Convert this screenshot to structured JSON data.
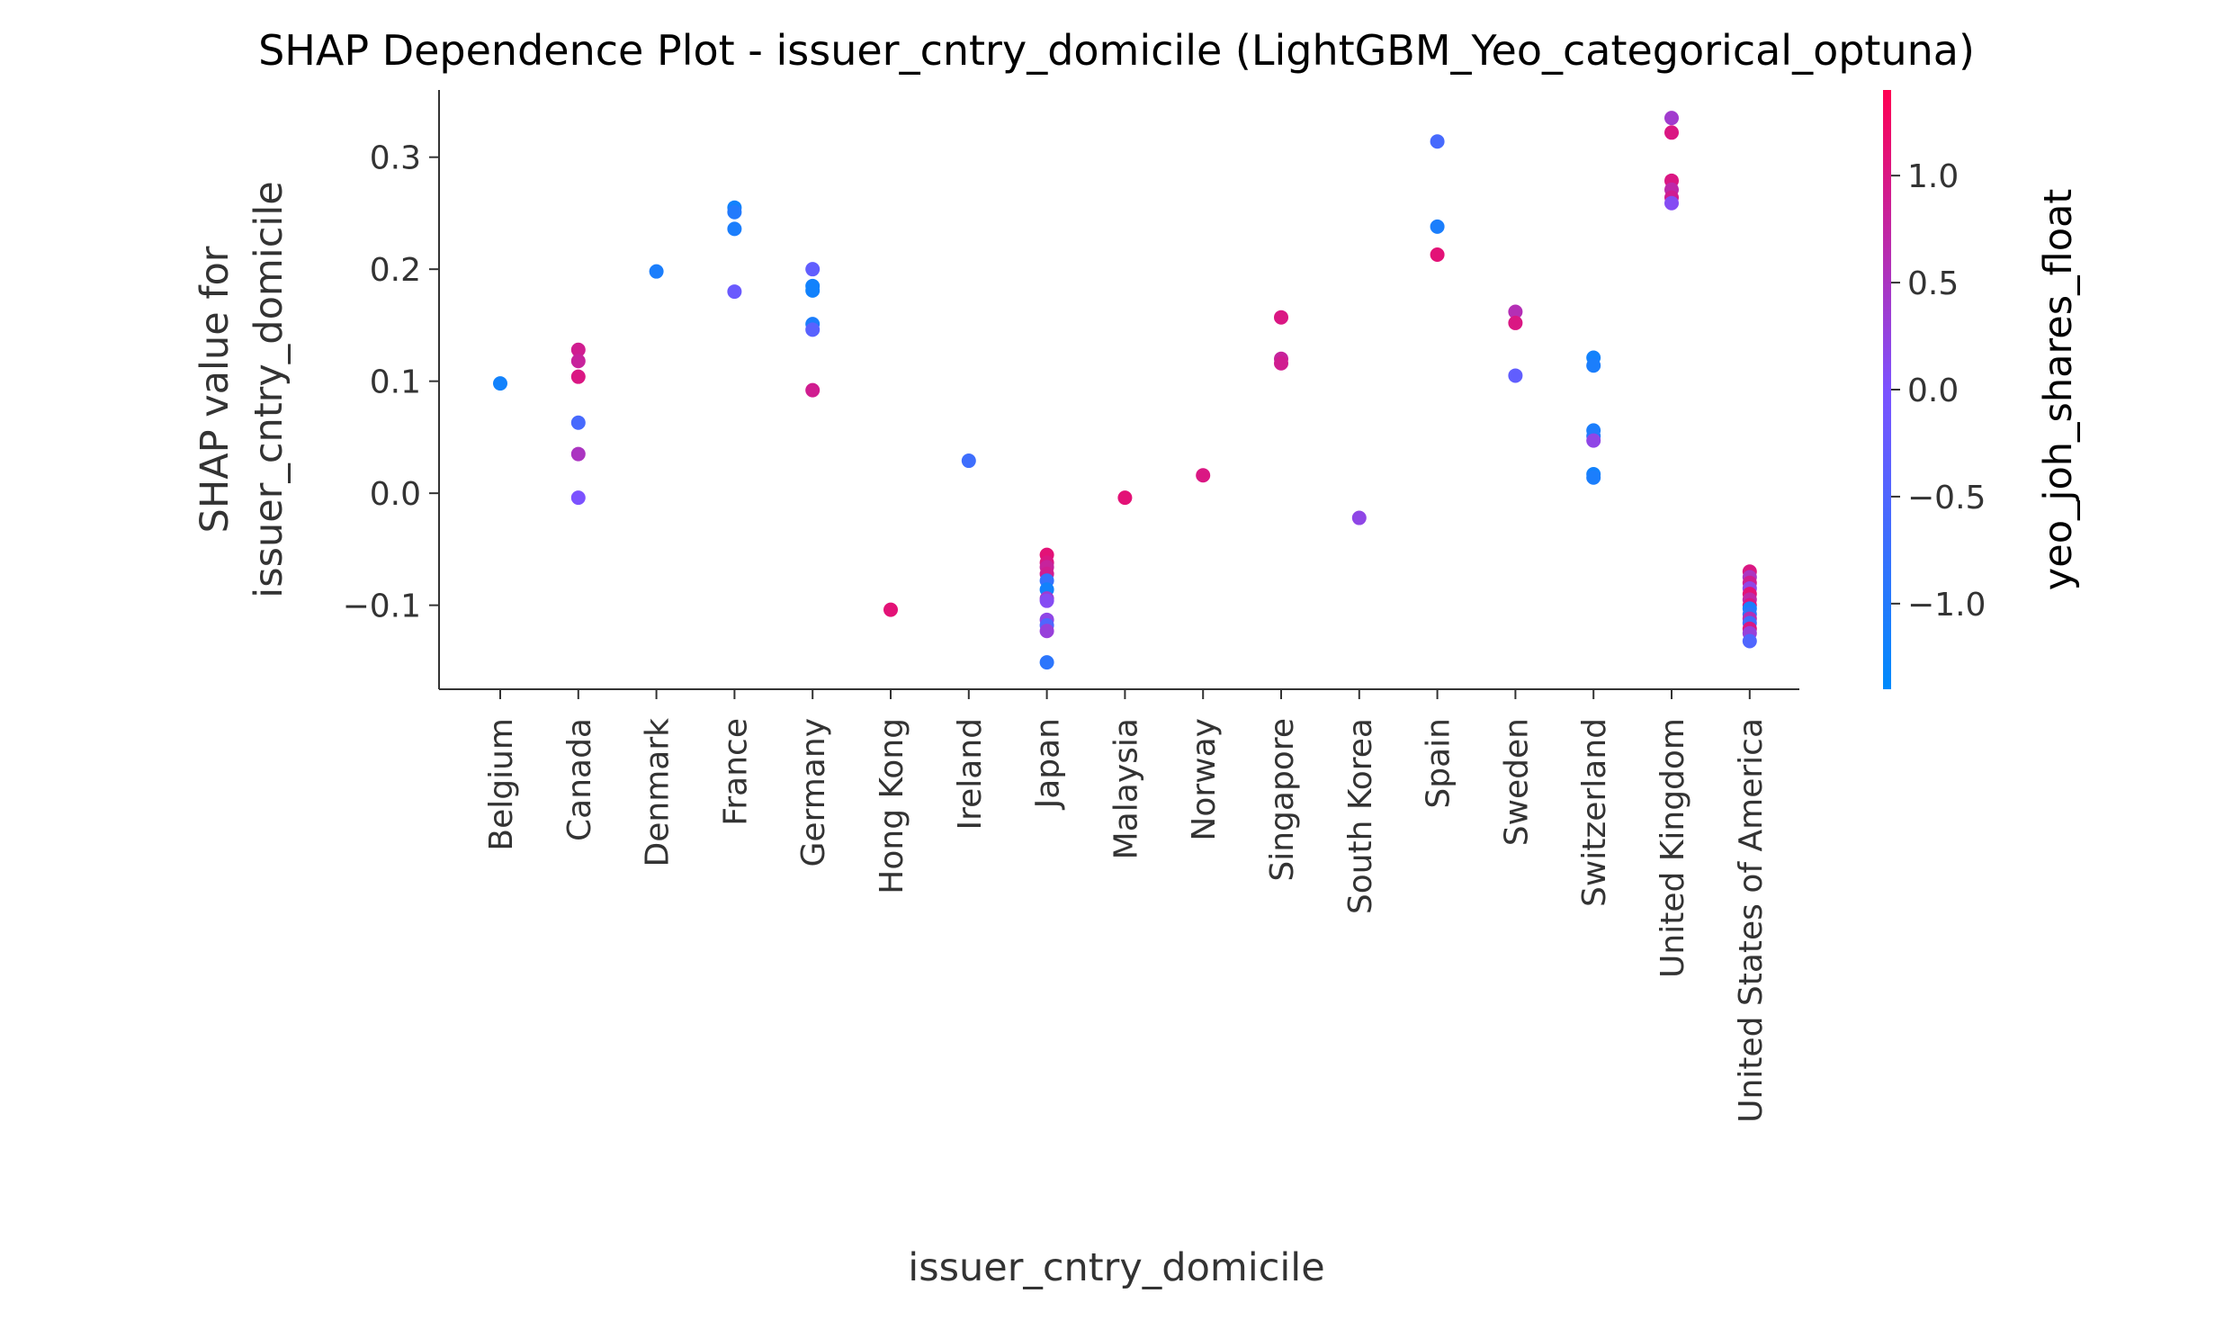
{
  "chart_data": {
    "type": "scatter",
    "title": "SHAP Dependence Plot - issuer_cntry_domicile (LightGBM_Yeo_categorical_optuna)",
    "xlabel": "issuer_cntry_domicile",
    "ylabel_lines": [
      "SHAP value for",
      "issuer_cntry_domicile"
    ],
    "categories": [
      "Belgium",
      "Canada",
      "Denmark",
      "France",
      "Germany",
      "Hong Kong",
      "Ireland",
      "Japan",
      "Malaysia",
      "Norway",
      "Singapore",
      "South Korea",
      "Spain",
      "Sweden",
      "Switzerland",
      "United Kingdom",
      "United States of America"
    ],
    "ylim": [
      -0.175,
      0.36
    ],
    "yticks": [
      -0.1,
      0.0,
      0.1,
      0.2,
      0.3
    ],
    "ytick_labels": [
      "−0.1",
      "0.0",
      "0.1",
      "0.2",
      "0.3"
    ],
    "grid": false,
    "colorbar": {
      "label": "yeo_joh_shares_float",
      "range": [
        -1.4,
        1.4
      ],
      "ticks": [
        -1.0,
        -0.5,
        0.0,
        0.5,
        1.0
      ],
      "tick_labels": [
        "−1.0",
        "−0.5",
        "0.0",
        "0.5",
        "1.0"
      ],
      "low_color": "#008afb",
      "mid_color": "#7c52ff",
      "high_color": "#ff0052"
    },
    "points": [
      {
        "x": "Belgium",
        "y": 0.098,
        "c": -1.2
      },
      {
        "x": "Canada",
        "y": 0.128,
        "c": 0.9
      },
      {
        "x": "Canada",
        "y": 0.118,
        "c": 0.8
      },
      {
        "x": "Canada",
        "y": 0.104,
        "c": 1.0
      },
      {
        "x": "Canada",
        "y": 0.063,
        "c": -0.6
      },
      {
        "x": "Canada",
        "y": 0.035,
        "c": 0.5
      },
      {
        "x": "Canada",
        "y": -0.004,
        "c": 0.0
      },
      {
        "x": "Denmark",
        "y": 0.198,
        "c": -1.1
      },
      {
        "x": "France",
        "y": 0.255,
        "c": -1.2
      },
      {
        "x": "France",
        "y": 0.251,
        "c": -1.0
      },
      {
        "x": "France",
        "y": 0.236,
        "c": -1.1
      },
      {
        "x": "France",
        "y": 0.18,
        "c": -0.2
      },
      {
        "x": "Germany",
        "y": 0.2,
        "c": -0.3
      },
      {
        "x": "Germany",
        "y": 0.185,
        "c": -1.2
      },
      {
        "x": "Germany",
        "y": 0.181,
        "c": -1.2
      },
      {
        "x": "Germany",
        "y": 0.151,
        "c": -1.1
      },
      {
        "x": "Germany",
        "y": 0.146,
        "c": -0.4
      },
      {
        "x": "Germany",
        "y": 0.092,
        "c": 0.9
      },
      {
        "x": "Hong Kong",
        "y": -0.104,
        "c": 1.1
      },
      {
        "x": "Ireland",
        "y": 0.029,
        "c": -0.7
      },
      {
        "x": "Japan",
        "y": -0.055,
        "c": 1.1
      },
      {
        "x": "Japan",
        "y": -0.062,
        "c": 1.0
      },
      {
        "x": "Japan",
        "y": -0.066,
        "c": 0.8
      },
      {
        "x": "Japan",
        "y": -0.072,
        "c": 0.9
      },
      {
        "x": "Japan",
        "y": -0.078,
        "c": -0.8
      },
      {
        "x": "Japan",
        "y": -0.086,
        "c": -1.2
      },
      {
        "x": "Japan",
        "y": -0.094,
        "c": 0.4
      },
      {
        "x": "Japan",
        "y": -0.096,
        "c": 0.1
      },
      {
        "x": "Japan",
        "y": -0.113,
        "c": 0.2
      },
      {
        "x": "Japan",
        "y": -0.118,
        "c": -0.5
      },
      {
        "x": "Japan",
        "y": -0.123,
        "c": 0.3
      },
      {
        "x": "Japan",
        "y": -0.151,
        "c": -0.9
      },
      {
        "x": "Malaysia",
        "y": -0.004,
        "c": 1.1
      },
      {
        "x": "Norway",
        "y": 0.016,
        "c": 1.0
      },
      {
        "x": "Singapore",
        "y": 0.157,
        "c": 1.0
      },
      {
        "x": "Singapore",
        "y": 0.12,
        "c": 0.8
      },
      {
        "x": "Singapore",
        "y": 0.116,
        "c": 0.9
      },
      {
        "x": "South Korea",
        "y": -0.022,
        "c": 0.2
      },
      {
        "x": "Spain",
        "y": 0.314,
        "c": -0.6
      },
      {
        "x": "Spain",
        "y": 0.238,
        "c": -1.1
      },
      {
        "x": "Spain",
        "y": 0.213,
        "c": 1.1
      },
      {
        "x": "Sweden",
        "y": 0.162,
        "c": 0.6
      },
      {
        "x": "Sweden",
        "y": 0.152,
        "c": 1.0
      },
      {
        "x": "Sweden",
        "y": 0.105,
        "c": -0.3
      },
      {
        "x": "Switzerland",
        "y": 0.121,
        "c": -1.2
      },
      {
        "x": "Switzerland",
        "y": 0.114,
        "c": -1.1
      },
      {
        "x": "Switzerland",
        "y": 0.056,
        "c": -1.1
      },
      {
        "x": "Switzerland",
        "y": 0.051,
        "c": -1.0
      },
      {
        "x": "Switzerland",
        "y": 0.047,
        "c": 0.2
      },
      {
        "x": "Switzerland",
        "y": 0.017,
        "c": -1.2
      },
      {
        "x": "Switzerland",
        "y": 0.014,
        "c": -1.1
      },
      {
        "x": "United Kingdom",
        "y": 0.335,
        "c": 0.4
      },
      {
        "x": "United Kingdom",
        "y": 0.322,
        "c": 1.0
      },
      {
        "x": "United Kingdom",
        "y": 0.279,
        "c": 1.0
      },
      {
        "x": "United Kingdom",
        "y": 0.271,
        "c": 0.7
      },
      {
        "x": "United Kingdom",
        "y": 0.264,
        "c": 0.9
      },
      {
        "x": "United Kingdom",
        "y": 0.259,
        "c": 0.1
      },
      {
        "x": "United States of America",
        "y": -0.07,
        "c": 1.0
      },
      {
        "x": "United States of America",
        "y": -0.075,
        "c": 0.5
      },
      {
        "x": "United States of America",
        "y": -0.08,
        "c": 0.9
      },
      {
        "x": "United States of America",
        "y": -0.085,
        "c": 0.2
      },
      {
        "x": "United States of America",
        "y": -0.09,
        "c": 1.1
      },
      {
        "x": "United States of America",
        "y": -0.095,
        "c": 0.7
      },
      {
        "x": "United States of America",
        "y": -0.1,
        "c": 1.0
      },
      {
        "x": "United States of America",
        "y": -0.103,
        "c": -1.1
      },
      {
        "x": "United States of America",
        "y": -0.108,
        "c": -0.9
      },
      {
        "x": "United States of America",
        "y": -0.112,
        "c": 0.6
      },
      {
        "x": "United States of America",
        "y": -0.116,
        "c": -0.7
      },
      {
        "x": "United States of America",
        "y": -0.121,
        "c": 1.0
      },
      {
        "x": "United States of America",
        "y": -0.125,
        "c": 0.3
      },
      {
        "x": "United States of America",
        "y": -0.132,
        "c": -0.5
      }
    ]
  }
}
